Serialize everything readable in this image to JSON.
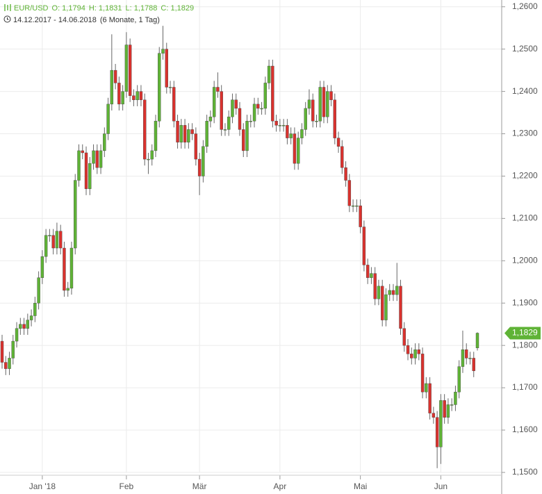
{
  "header": {
    "symbol": "EUR/USD",
    "open_label": "O: 1,1794",
    "high_label": "H: 1,1831",
    "low_label": "L: 1,1788",
    "close_label": "C: 1,1829",
    "range": "14.12.2017 - 14.06.2018",
    "span": "(6 Monate, 1 Tag)"
  },
  "chart_data": {
    "type": "candlestick",
    "up_color": "#5fb336",
    "down_color": "#d9322e",
    "grid": true,
    "last_label": "1,1829",
    "ylim": [
      1.1449,
      1.2616
    ],
    "yticks": [
      {
        "value": 1.15,
        "label": "1,1500"
      },
      {
        "value": 1.16,
        "label": "1,1600"
      },
      {
        "value": 1.17,
        "label": "1,1700"
      },
      {
        "value": 1.18,
        "label": "1,1800"
      },
      {
        "value": 1.19,
        "label": "1,1900"
      },
      {
        "value": 1.2,
        "label": "1,2000"
      },
      {
        "value": 1.21,
        "label": "1,2100"
      },
      {
        "value": 1.22,
        "label": "1,2200"
      },
      {
        "value": 1.23,
        "label": "1,2300"
      },
      {
        "value": 1.24,
        "label": "1,2400"
      },
      {
        "value": 1.25,
        "label": "1,2500"
      },
      {
        "value": 1.26,
        "label": "1,2600"
      }
    ],
    "categories": [
      null,
      null,
      null,
      null,
      null,
      null,
      null,
      null,
      null,
      null,
      null,
      "Jan '18",
      null,
      null,
      null,
      null,
      null,
      null,
      null,
      null,
      null,
      null,
      null,
      null,
      null,
      null,
      null,
      null,
      null,
      null,
      null,
      null,
      null,
      null,
      "Feb",
      null,
      null,
      null,
      null,
      null,
      null,
      null,
      null,
      null,
      null,
      null,
      null,
      null,
      null,
      null,
      null,
      null,
      null,
      null,
      "Mär",
      null,
      null,
      null,
      null,
      null,
      null,
      null,
      null,
      null,
      null,
      null,
      null,
      null,
      null,
      null,
      null,
      null,
      null,
      null,
      null,
      null,
      "Apr",
      null,
      null,
      null,
      null,
      null,
      null,
      null,
      null,
      null,
      null,
      null,
      null,
      null,
      null,
      null,
      null,
      null,
      null,
      null,
      null,
      null,
      "Mai",
      null,
      null,
      null,
      null,
      null,
      null,
      null,
      null,
      null,
      null,
      null,
      null,
      null,
      null,
      null,
      null,
      null,
      null,
      null,
      null,
      null,
      "Jun",
      null,
      null,
      null,
      null,
      null,
      null,
      null,
      null,
      null,
      null
    ],
    "open": [
      1.181,
      1.176,
      1.1745,
      1.177,
      1.181,
      1.184,
      1.185,
      1.184,
      1.186,
      1.187,
      1.19,
      1.196,
      1.201,
      1.206,
      1.206,
      1.203,
      1.207,
      1.203,
      1.193,
      1.1935,
      1.203,
      1.219,
      1.226,
      1.2255,
      1.217,
      1.223,
      1.226,
      1.222,
      1.226,
      1.23,
      1.237,
      1.245,
      1.242,
      1.237,
      1.24,
      1.251,
      1.239,
      1.238,
      1.24,
      1.238,
      1.224,
      1.224,
      1.226,
      1.233,
      1.249,
      1.25,
      1.241,
      1.241,
      1.233,
      1.228,
      1.232,
      1.228,
      1.231,
      1.23,
      1.224,
      1.22,
      1.227,
      1.233,
      1.234,
      1.241,
      1.24,
      1.231,
      1.231,
      1.234,
      1.238,
      1.236,
      1.231,
      1.226,
      1.233,
      1.233,
      1.237,
      1.236,
      1.236,
      1.242,
      1.246,
      1.233,
      1.232,
      1.232,
      1.232,
      1.229,
      1.23,
      1.223,
      1.229,
      1.231,
      1.236,
      1.238,
      1.233,
      1.233,
      1.241,
      1.234,
      1.24,
      1.238,
      1.229,
      1.227,
      1.222,
      1.219,
      1.213,
      1.213,
      1.213,
      1.208,
      1.199,
      1.196,
      1.197,
      1.191,
      1.194,
      1.186,
      1.192,
      1.193,
      1.192,
      1.194,
      1.184,
      1.18,
      1.178,
      1.177,
      1.179,
      1.178,
      1.169,
      1.171,
      1.164,
      1.163,
      1.156,
      1.167,
      1.163,
      1.166,
      1.166,
      1.169,
      1.175,
      1.179,
      1.177,
      1.177,
      1.1794
    ],
    "high": [
      1.1825,
      1.1775,
      1.1785,
      1.1825,
      1.1855,
      1.1865,
      1.1865,
      1.1875,
      1.1885,
      1.1915,
      1.1975,
      1.2025,
      1.2075,
      1.2075,
      1.2075,
      1.209,
      1.2085,
      1.2045,
      1.195,
      1.2045,
      1.2205,
      1.2275,
      1.2275,
      1.227,
      1.2245,
      1.2275,
      1.2275,
      1.2275,
      1.2315,
      1.2385,
      1.2535,
      1.2465,
      1.2435,
      1.2415,
      1.254,
      1.2525,
      1.2405,
      1.2415,
      1.2415,
      1.2395,
      1.2255,
      1.2275,
      1.2345,
      1.2505,
      1.2555,
      1.2515,
      1.2425,
      1.2425,
      1.2345,
      1.2335,
      1.2335,
      1.2325,
      1.2325,
      1.2315,
      1.2255,
      1.2285,
      1.2345,
      1.2355,
      1.2425,
      1.2445,
      1.2415,
      1.2325,
      1.2355,
      1.2395,
      1.2395,
      1.2375,
      1.2325,
      1.2345,
      1.2345,
      1.2385,
      1.2385,
      1.2375,
      1.2435,
      1.2475,
      1.2475,
      1.2345,
      1.2335,
      1.2335,
      1.2335,
      1.2315,
      1.2315,
      1.2305,
      1.2325,
      1.2375,
      1.2405,
      1.2395,
      1.2345,
      1.2425,
      1.2425,
      1.2415,
      1.2415,
      1.2395,
      1.2305,
      1.2285,
      1.2235,
      1.2205,
      1.2145,
      1.2145,
      1.2145,
      1.2095,
      1.2005,
      1.1985,
      1.1985,
      1.1955,
      1.1955,
      1.1935,
      1.1945,
      1.1945,
      1.1995,
      1.1955,
      1.1855,
      1.1815,
      1.1795,
      1.1805,
      1.1805,
      1.1795,
      1.1725,
      1.1725,
      1.1655,
      1.1645,
      1.1685,
      1.1685,
      1.1675,
      1.1675,
      1.1705,
      1.1765,
      1.1835,
      1.1805,
      1.1785,
      1.1785,
      1.1831
    ],
    "low": [
      1.1745,
      1.173,
      1.173,
      1.1755,
      1.1795,
      1.1825,
      1.1825,
      1.1825,
      1.1845,
      1.1855,
      1.1885,
      1.1945,
      1.1995,
      1.2045,
      1.2015,
      1.2015,
      1.2015,
      1.1915,
      1.1915,
      1.192,
      1.2015,
      1.2175,
      1.224,
      1.2155,
      1.2155,
      1.2215,
      1.2205,
      1.2205,
      1.2245,
      1.2285,
      1.2355,
      1.2405,
      1.2355,
      1.2355,
      1.2385,
      1.2375,
      1.2365,
      1.2365,
      1.2365,
      1.2225,
      1.2205,
      1.2225,
      1.2245,
      1.2315,
      1.2475,
      1.2395,
      1.2395,
      1.2315,
      1.2265,
      1.2265,
      1.2265,
      1.2265,
      1.2285,
      1.2225,
      1.2155,
      1.2185,
      1.2255,
      1.2315,
      1.2325,
      1.2385,
      1.2295,
      1.2295,
      1.2295,
      1.2325,
      1.2345,
      1.2295,
      1.2245,
      1.2245,
      1.2315,
      1.2315,
      1.2345,
      1.2345,
      1.2345,
      1.2405,
      1.2315,
      1.2305,
      1.2305,
      1.2305,
      1.2275,
      1.2275,
      1.2215,
      1.2215,
      1.2275,
      1.2295,
      1.2345,
      1.2315,
      1.2315,
      1.2315,
      1.2325,
      1.2325,
      1.2365,
      1.2275,
      1.2255,
      1.2205,
      1.2175,
      1.2115,
      1.2115,
      1.2115,
      1.2065,
      1.1975,
      1.1945,
      1.1945,
      1.1895,
      1.1895,
      1.1845,
      1.1845,
      1.1905,
      1.1905,
      1.1905,
      1.1825,
      1.1785,
      1.1765,
      1.1755,
      1.1755,
      1.1765,
      1.1675,
      1.1675,
      1.1625,
      1.1615,
      1.151,
      1.152,
      1.1615,
      1.1615,
      1.1645,
      1.1645,
      1.1675,
      1.1735,
      1.1755,
      1.1755,
      1.1725,
      1.1788
    ],
    "close": [
      1.176,
      1.1745,
      1.177,
      1.181,
      1.184,
      1.185,
      1.184,
      1.186,
      1.187,
      1.19,
      1.196,
      1.201,
      1.206,
      1.206,
      1.203,
      1.207,
      1.203,
      1.193,
      1.1935,
      1.203,
      1.219,
      1.226,
      1.2255,
      1.217,
      1.223,
      1.226,
      1.222,
      1.226,
      1.23,
      1.237,
      1.245,
      1.242,
      1.237,
      1.24,
      1.251,
      1.239,
      1.238,
      1.24,
      1.238,
      1.224,
      1.224,
      1.226,
      1.233,
      1.249,
      1.25,
      1.241,
      1.241,
      1.233,
      1.228,
      1.232,
      1.228,
      1.231,
      1.23,
      1.224,
      1.22,
      1.227,
      1.233,
      1.234,
      1.241,
      1.24,
      1.231,
      1.231,
      1.234,
      1.238,
      1.236,
      1.231,
      1.226,
      1.233,
      1.233,
      1.237,
      1.236,
      1.236,
      1.242,
      1.246,
      1.233,
      1.232,
      1.232,
      1.232,
      1.229,
      1.23,
      1.223,
      1.229,
      1.231,
      1.236,
      1.238,
      1.233,
      1.233,
      1.241,
      1.234,
      1.24,
      1.238,
      1.229,
      1.227,
      1.222,
      1.219,
      1.213,
      1.213,
      1.213,
      1.208,
      1.199,
      1.196,
      1.197,
      1.191,
      1.194,
      1.186,
      1.192,
      1.193,
      1.192,
      1.194,
      1.184,
      1.18,
      1.178,
      1.177,
      1.179,
      1.178,
      1.169,
      1.171,
      1.164,
      1.163,
      1.156,
      1.167,
      1.163,
      1.166,
      1.166,
      1.169,
      1.175,
      1.179,
      1.177,
      1.177,
      1.174,
      1.1829
    ]
  }
}
